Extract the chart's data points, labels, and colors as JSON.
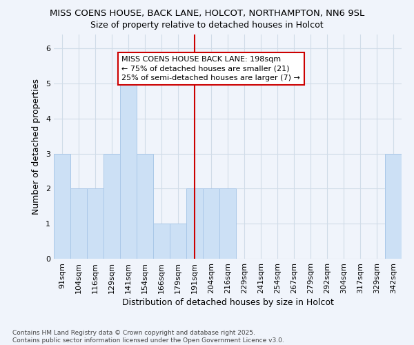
{
  "title1": "MISS COENS HOUSE, BACK LANE, HOLCOT, NORTHAMPTON, NN6 9SL",
  "title2": "Size of property relative to detached houses in Holcot",
  "xlabel": "Distribution of detached houses by size in Holcot",
  "ylabel": "Number of detached properties",
  "categories": [
    "91sqm",
    "104sqm",
    "116sqm",
    "129sqm",
    "141sqm",
    "154sqm",
    "166sqm",
    "179sqm",
    "191sqm",
    "204sqm",
    "216sqm",
    "229sqm",
    "241sqm",
    "254sqm",
    "267sqm",
    "279sqm",
    "292sqm",
    "304sqm",
    "317sqm",
    "329sqm",
    "342sqm"
  ],
  "values": [
    3,
    2,
    2,
    3,
    5,
    3,
    1,
    1,
    2,
    2,
    2,
    0,
    0,
    0,
    0,
    0,
    0,
    0,
    0,
    0,
    3
  ],
  "bar_color": "#cce0f5",
  "bar_edge_color": "#aac8e8",
  "vline_index": 8,
  "vline_color": "#cc0000",
  "annotation_text": "MISS COENS HOUSE BACK LANE: 198sqm\n← 75% of detached houses are smaller (21)\n25% of semi-detached houses are larger (7) →",
  "annotation_box_facecolor": "#ffffff",
  "annotation_box_edgecolor": "#cc0000",
  "footnote": "Contains HM Land Registry data © Crown copyright and database right 2025.\nContains public sector information licensed under the Open Government Licence v3.0.",
  "ylim": [
    0,
    6.4
  ],
  "yticks": [
    0,
    1,
    2,
    3,
    4,
    5,
    6
  ],
  "fig_facecolor": "#f0f4fb",
  "ax_facecolor": "#f0f4fb",
  "title1_fontsize": 9.5,
  "title2_fontsize": 9,
  "annotation_fontsize": 8,
  "tick_fontsize": 8,
  "label_fontsize": 9,
  "footnote_fontsize": 6.5,
  "gridcolor": "#d0dce8"
}
